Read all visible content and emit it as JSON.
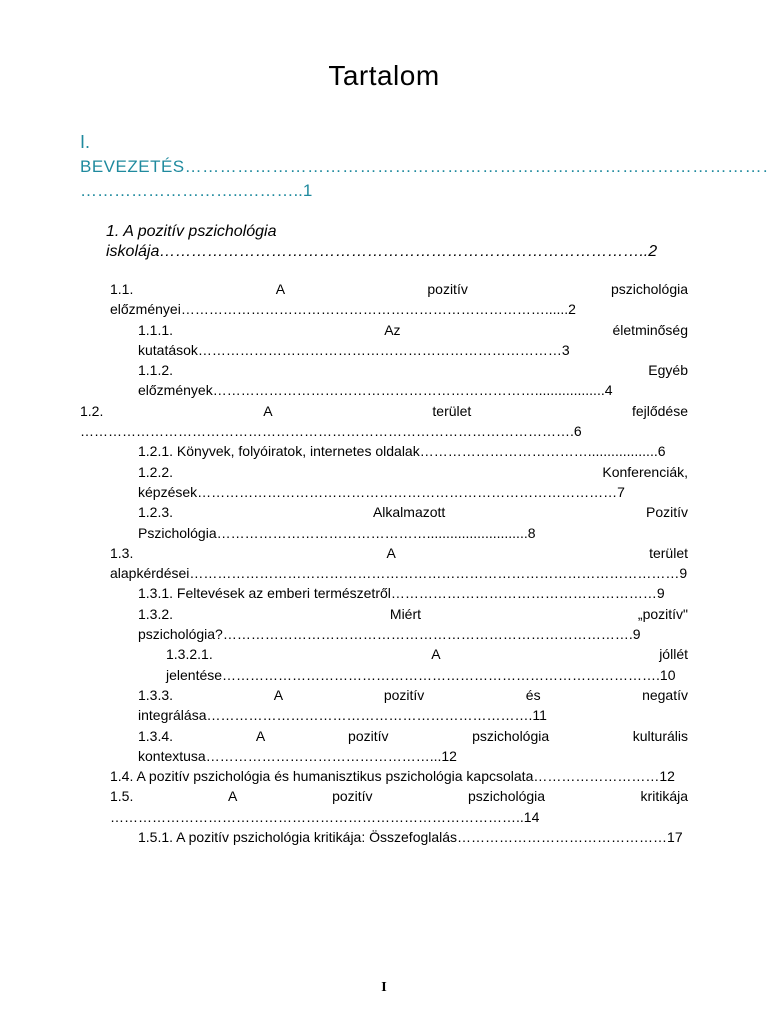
{
  "title": "Tartalom",
  "roman_major": "I.",
  "intro": {
    "label_caps": "Bevezetés",
    "dots_line1": "…………………………………………………………………………………………",
    "dots_line2": "………………………..………..1"
  },
  "chapter": {
    "num": "1.",
    "title_line1": "A pozitív pszichológia",
    "title_line2": "iskolája………………………………………………………………………………..2"
  },
  "entries": [
    {
      "text": "1.1. A pozitív pszichológia előzményei……………………………………………………………………......2",
      "indent": 0
    },
    {
      "text": "1.1.1. Az életminőség kutatások……………………………………………………………………3",
      "indent": 1
    },
    {
      "text": "1.1.2. Egyéb előzmények……………………………………………………………..................4",
      "indent": 1
    },
    {
      "text": "1.2. A terület fejlődése …………………………………………………………………………………………….6",
      "indent": 0,
      "outdent": true
    },
    {
      "text": "1.2.1. Könyvek, folyóiratok, internetes oldalak………………………………..................6",
      "indent": 1
    },
    {
      "text": "1.2.2. Konferenciák, képzések………………………………………………………………………………7",
      "indent": 1
    },
    {
      "text": "1.2.3. Alkalmazott Pozitív Pszichológia………………………………………..........................8",
      "indent": 1
    },
    {
      "text": "1.3. A terület alapkérdései……………………………………………………………………………………………9",
      "indent": 0
    },
    {
      "text": "1.3.1. Feltevések az emberi természetről…………………………………………………9",
      "indent": 1
    },
    {
      "text": "1.3.2. Miért „pozitív\" pszichológia?…………………………………………………………………………….9",
      "indent": 1
    },
    {
      "text": "1.3.2.1. A jóllét jelentése………………………………………………………………………………….10",
      "indent": 2
    },
    {
      "text": "1.3.3. A pozitív és negatív integrálása…………………………………………………………….11",
      "indent": 1
    },
    {
      "text": "1.3.4. A pozitív pszichológia kulturális kontextusa…………………………………………...12",
      "indent": 1
    },
    {
      "text": "1.4. A pozitív pszichológia és humanisztikus pszichológia kapcsolata………………………12",
      "indent": 0
    },
    {
      "text": "1.5. A pozitív pszichológia kritikája ……………………………………………………………………………..14",
      "indent": 0
    },
    {
      "text": "1.5.1. A pozitív pszichológia kritikája: Összefoglalás………………………………………17",
      "indent": 1
    }
  ],
  "page_number": "I",
  "colors": {
    "accent": "#1f8a9e",
    "text": "#000000",
    "background": "#ffffff"
  },
  "typography": {
    "title_fontsize": 28,
    "body_fontsize": 14,
    "heading_fontsize": 17,
    "font_family": "Century Gothic"
  }
}
